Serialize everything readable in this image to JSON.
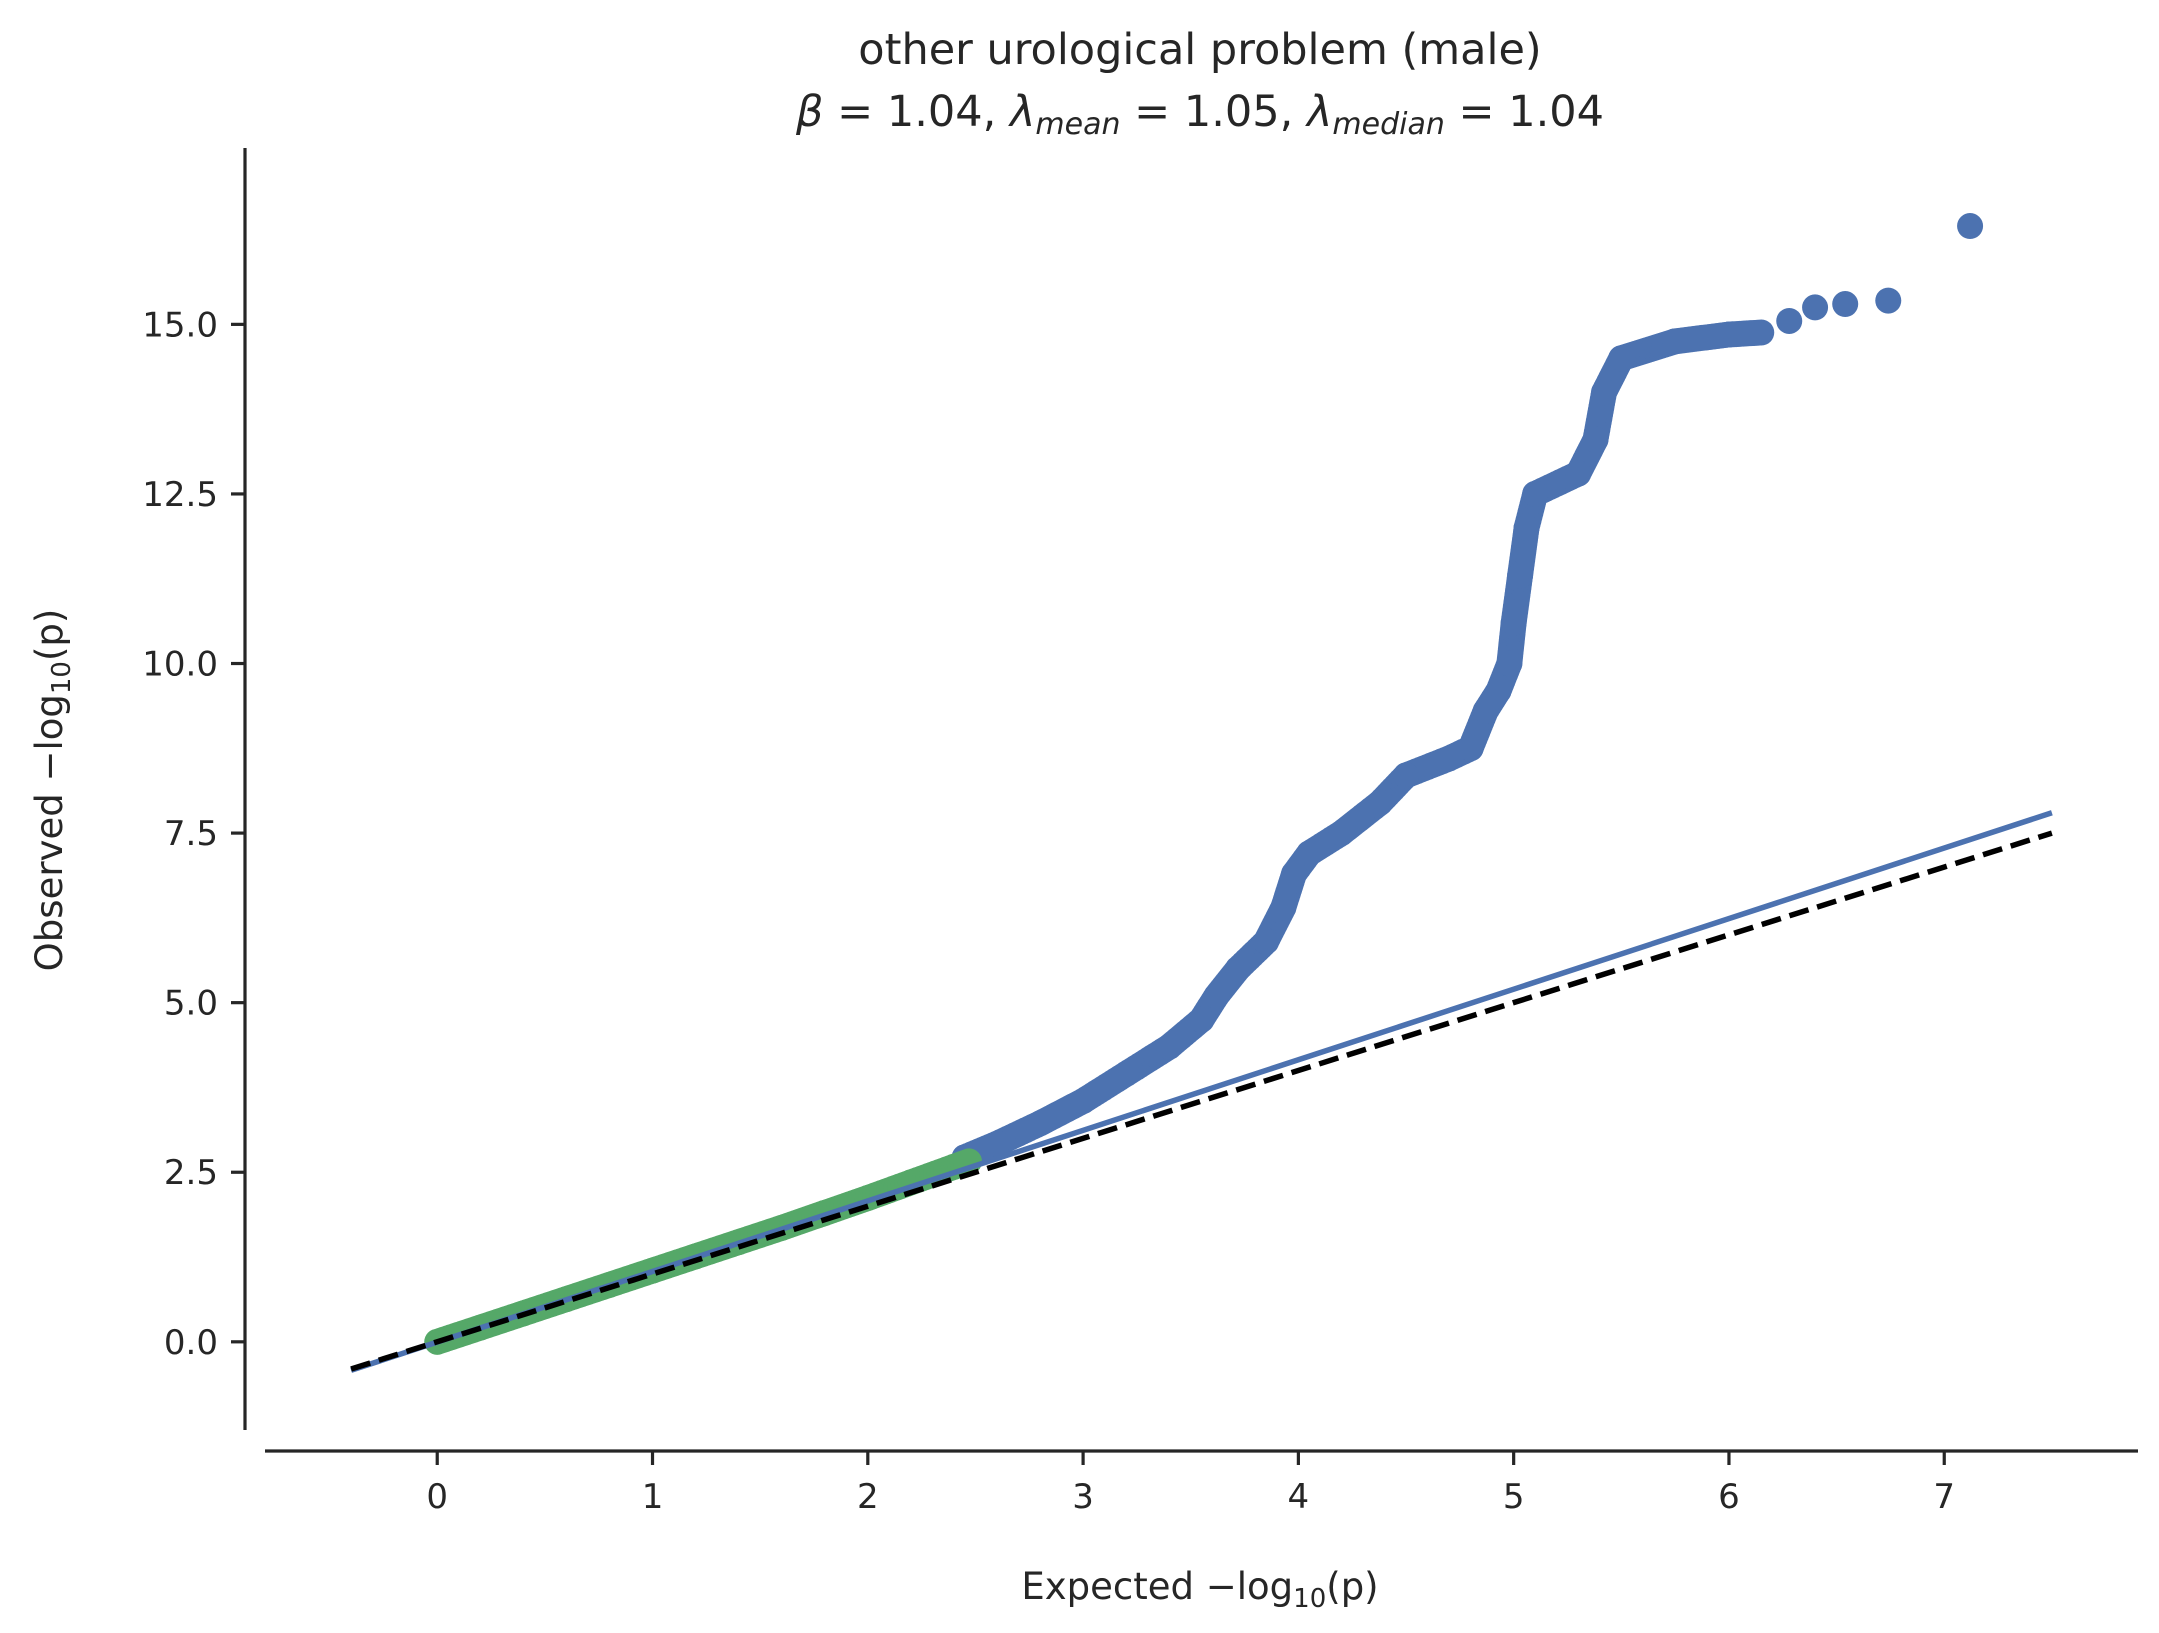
{
  "chart_data": {
    "type": "scatter",
    "title": "other urological problem (male)",
    "subtitle": {
      "beta_symbol": "β",
      "beta_value": "1.04",
      "lambda_symbol": "λ",
      "lambda_mean_sub": "mean",
      "lambda_mean_value": "1.05",
      "lambda_median_sub": "median",
      "lambda_median_value": "1.04"
    },
    "xlabel": {
      "pre": "Expected −log",
      "sub": "10",
      "post": "(p)"
    },
    "ylabel": {
      "pre": "Observed −log",
      "sub": "10",
      "post": "(p)"
    },
    "xlim": [
      -0.8,
      7.9
    ],
    "ylim": [
      -1.3,
      17.6
    ],
    "xticks": [
      0,
      1,
      2,
      3,
      4,
      5,
      6,
      7
    ],
    "xtick_labels": [
      "0",
      "1",
      "2",
      "3",
      "4",
      "5",
      "6",
      "7"
    ],
    "yticks": [
      0,
      2.5,
      5,
      7.5,
      10,
      12.5,
      15
    ],
    "ytick_labels": [
      "0.0",
      "2.5",
      "5.0",
      "7.5",
      "10.0",
      "12.5",
      "15.0"
    ],
    "grid": false,
    "series": [
      {
        "color": "#4c72b0",
        "marker": "circle",
        "points": [
          [
            2.45,
            2.72
          ],
          [
            2.6,
            2.92
          ],
          [
            2.8,
            3.22
          ],
          [
            3.0,
            3.55
          ],
          [
            3.2,
            3.95
          ],
          [
            3.4,
            4.35
          ],
          [
            3.55,
            4.75
          ],
          [
            3.62,
            5.1
          ],
          [
            3.72,
            5.5
          ],
          [
            3.85,
            5.9
          ],
          [
            3.93,
            6.4
          ],
          [
            3.98,
            6.9
          ],
          [
            4.05,
            7.2
          ],
          [
            4.2,
            7.5
          ],
          [
            4.38,
            7.95
          ],
          [
            4.5,
            8.35
          ],
          [
            4.7,
            8.6
          ],
          [
            4.8,
            8.75
          ],
          [
            4.87,
            9.3
          ],
          [
            4.93,
            9.6
          ],
          [
            4.98,
            10.0
          ],
          [
            5.0,
            10.6
          ],
          [
            5.03,
            11.3
          ],
          [
            5.06,
            12.0
          ],
          [
            5.1,
            12.5
          ],
          [
            5.3,
            12.8
          ],
          [
            5.38,
            13.3
          ],
          [
            5.42,
            14.0
          ],
          [
            5.5,
            14.5
          ],
          [
            5.75,
            14.75
          ],
          [
            6.0,
            14.85
          ],
          [
            6.15,
            14.88
          ],
          [
            6.28,
            15.05
          ],
          [
            6.4,
            15.25
          ],
          [
            6.54,
            15.3
          ],
          [
            6.74,
            15.35
          ],
          [
            7.12,
            16.45
          ]
        ]
      },
      {
        "color": "#55a868",
        "marker": "circle",
        "points": [
          [
            0.0,
            0.0
          ],
          [
            0.2,
            0.21
          ],
          [
            0.4,
            0.42
          ],
          [
            0.6,
            0.63
          ],
          [
            0.8,
            0.84
          ],
          [
            1.0,
            1.05
          ],
          [
            1.2,
            1.26
          ],
          [
            1.4,
            1.47
          ],
          [
            1.6,
            1.68
          ],
          [
            1.8,
            1.9
          ],
          [
            2.0,
            2.12
          ],
          [
            2.2,
            2.35
          ],
          [
            2.4,
            2.58
          ],
          [
            2.47,
            2.66
          ]
        ]
      }
    ],
    "lines": [
      {
        "style": "solid",
        "color": "#4c72b0",
        "x": [
          -0.4,
          7.5
        ],
        "y": [
          -0.42,
          7.8
        ]
      },
      {
        "style": "dashed",
        "color": "#000000",
        "x": [
          -0.4,
          7.5
        ],
        "y": [
          -0.4,
          7.5
        ]
      }
    ]
  }
}
